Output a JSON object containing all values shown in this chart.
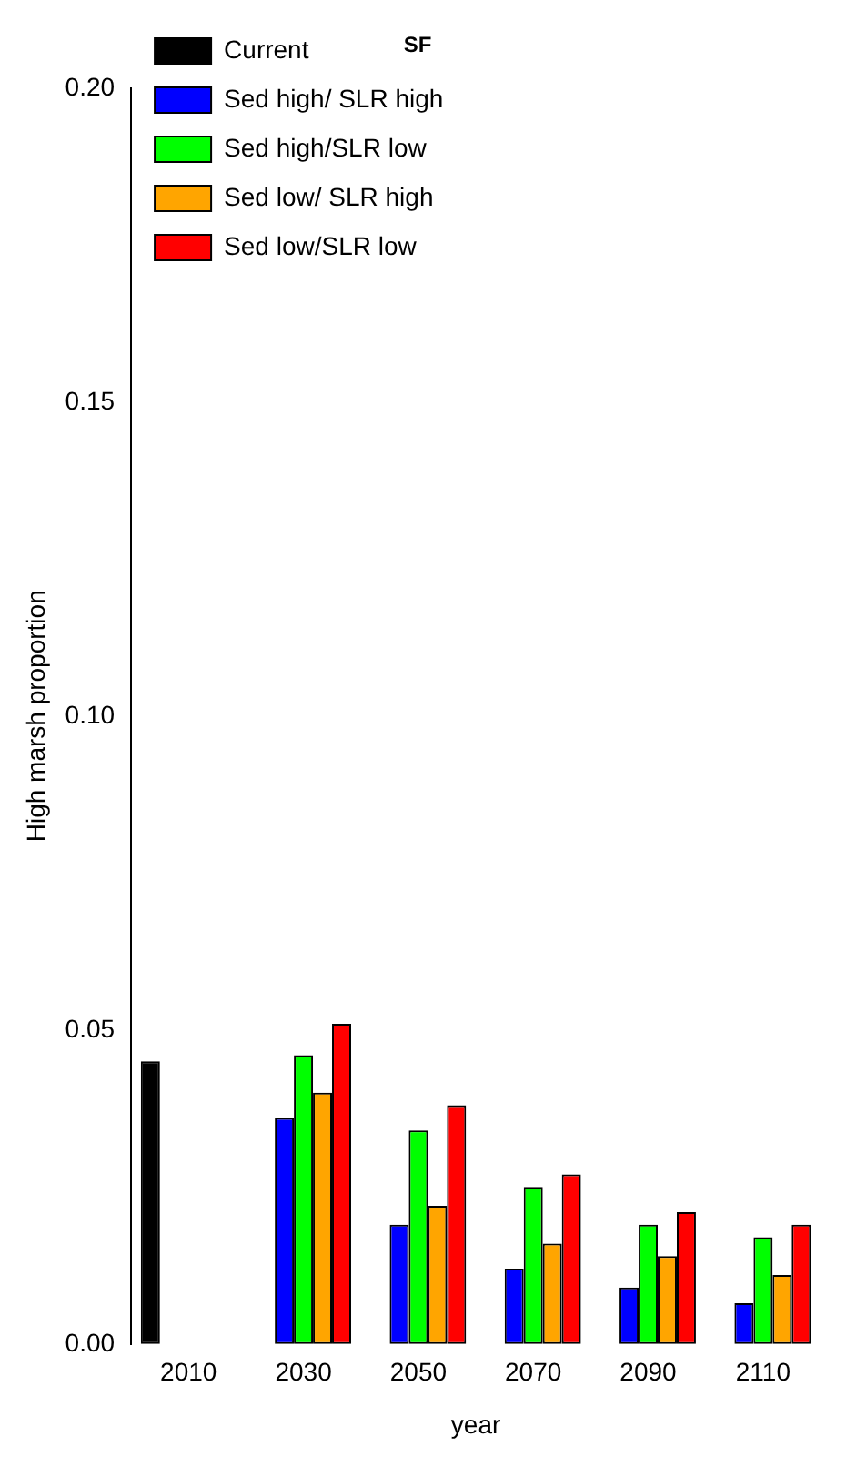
{
  "chart_data": {
    "type": "bar",
    "title": "SF",
    "xlabel": "year",
    "ylabel": "High marsh proportion",
    "categories": [
      "2010",
      "2030",
      "2050",
      "2070",
      "2090",
      "2110"
    ],
    "series": [
      {
        "name": "Current",
        "color": "#000000",
        "values": [
          0.045,
          0,
          0,
          0,
          0,
          0
        ]
      },
      {
        "name": "Sed high/ SLR high",
        "color": "#0000ff",
        "values": [
          0,
          0.036,
          0.019,
          0.012,
          0.009,
          0.0065
        ]
      },
      {
        "name": "Sed high/SLR low",
        "color": "#00ff00",
        "values": [
          0,
          0.046,
          0.034,
          0.025,
          0.019,
          0.017
        ]
      },
      {
        "name": "Sed low/ SLR high",
        "color": "#ffa500",
        "values": [
          0,
          0.04,
          0.022,
          0.016,
          0.014,
          0.011
        ]
      },
      {
        "name": "Sed low/SLR low",
        "color": "#ff0000",
        "values": [
          0,
          0.051,
          0.038,
          0.027,
          0.021,
          0.019
        ]
      }
    ],
    "ylim": [
      0,
      0.2
    ],
    "yticks": [
      {
        "value": 0,
        "label": "0.00"
      },
      {
        "value": 0.05,
        "label": "0.05"
      },
      {
        "value": 0.1,
        "label": "0.10"
      },
      {
        "value": 0.15,
        "label": "0.15"
      },
      {
        "value": 0.2,
        "label": "0.20"
      }
    ],
    "grid": false,
    "legend": "top left"
  }
}
